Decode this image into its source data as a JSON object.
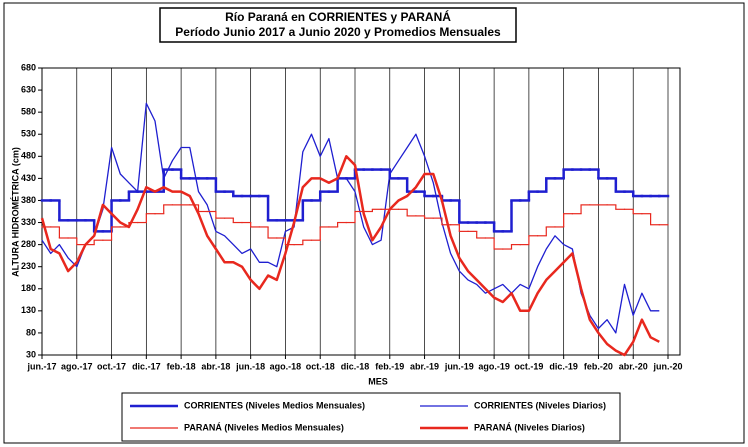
{
  "chart_data": {
    "type": "line",
    "title": "Río Paraná en CORRIENTES y PARANÁ",
    "subtitle": "Período Junio 2017 a Junio 2020 y Promedios Mensuales",
    "x_label": "MES",
    "y_label": "ALTURA HIDROMÉTRICA (cm)",
    "categories": [
      "jun.-17",
      null,
      null,
      null,
      "ago.-17",
      null,
      null,
      null,
      "oct.-17",
      null,
      null,
      null,
      "dic.-17",
      null,
      null,
      null,
      "feb.-18",
      null,
      null,
      null,
      "abr.-18",
      null,
      null,
      null,
      "jun.-18",
      null,
      null,
      null,
      "ago.-18",
      null,
      null,
      null,
      "oct.-18",
      null,
      null,
      null,
      "dic.-18",
      null,
      null,
      null,
      "feb.-19",
      null,
      null,
      null,
      "abr.-19",
      null,
      null,
      null,
      "jun.-19",
      null,
      null,
      null,
      "ago.-19",
      null,
      null,
      null,
      "oct.-19",
      null,
      null,
      null,
      "dic.-19",
      null,
      null,
      null,
      "feb.-20",
      null,
      null,
      null,
      "abr.-20",
      null,
      null,
      null,
      "jun.-20"
    ],
    "ylim": [
      30,
      680
    ],
    "yticks": [
      30,
      80,
      130,
      180,
      230,
      280,
      330,
      380,
      430,
      480,
      530,
      580,
      630,
      680
    ],
    "grid": "x",
    "series": [
      {
        "name": "CORRIENTES (Niveles Medios Mensuales)",
        "color": "#1f1fd0",
        "line_width": 2.5,
        "step": true,
        "values": [
          380,
          380,
          335,
          335,
          335,
          335,
          310,
          310,
          380,
          380,
          400,
          400,
          400,
          400,
          450,
          450,
          430,
          430,
          430,
          430,
          400,
          400,
          390,
          390,
          390,
          390,
          335,
          335,
          335,
          335,
          380,
          380,
          400,
          400,
          430,
          430,
          450,
          450,
          450,
          450,
          430,
          430,
          400,
          400,
          390,
          390,
          380,
          380,
          330,
          330,
          330,
          330,
          310,
          310,
          380,
          380,
          400,
          400,
          430,
          430,
          450,
          450,
          450,
          450,
          430,
          430,
          400,
          400,
          390,
          390,
          390,
          390,
          null
        ]
      },
      {
        "name": "CORRIENTES (Niveles Diarios)",
        "color": "#1f1fd0",
        "line_width": 1.3,
        "step": false,
        "values": [
          290,
          260,
          280,
          250,
          230,
          280,
          300,
          360,
          500,
          440,
          420,
          400,
          600,
          560,
          430,
          470,
          500,
          500,
          400,
          370,
          310,
          300,
          280,
          260,
          270,
          240,
          240,
          230,
          310,
          320,
          490,
          530,
          480,
          520,
          430,
          430,
          400,
          320,
          280,
          290,
          440,
          470,
          500,
          530,
          480,
          420,
          330,
          260,
          220,
          200,
          190,
          170,
          180,
          190,
          170,
          190,
          180,
          230,
          270,
          300,
          280,
          270,
          170,
          120,
          90,
          110,
          80,
          190,
          120,
          170,
          130,
          130,
          null
        ]
      },
      {
        "name": "PARANÁ (Niveles Medios Mensuales)",
        "color": "#e8281e",
        "line_width": 1.2,
        "step": true,
        "values": [
          320,
          320,
          295,
          295,
          280,
          280,
          290,
          290,
          320,
          320,
          330,
          330,
          350,
          350,
          370,
          370,
          370,
          370,
          355,
          355,
          340,
          340,
          330,
          330,
          320,
          320,
          295,
          295,
          280,
          280,
          290,
          290,
          320,
          320,
          330,
          330,
          355,
          355,
          360,
          360,
          360,
          360,
          345,
          345,
          340,
          340,
          325,
          325,
          310,
          310,
          295,
          295,
          270,
          270,
          280,
          280,
          300,
          300,
          320,
          320,
          350,
          350,
          370,
          370,
          370,
          370,
          360,
          360,
          350,
          350,
          325,
          325,
          null
        ]
      },
      {
        "name": "PARANÁ (Niveles Diarios)",
        "color": "#e8281e",
        "line_width": 2.5,
        "step": false,
        "values": [
          340,
          270,
          260,
          220,
          240,
          280,
          300,
          370,
          350,
          330,
          320,
          360,
          410,
          400,
          410,
          400,
          400,
          390,
          350,
          300,
          270,
          240,
          240,
          230,
          200,
          180,
          210,
          200,
          260,
          330,
          410,
          430,
          430,
          420,
          430,
          480,
          460,
          350,
          290,
          320,
          360,
          380,
          390,
          410,
          440,
          440,
          380,
          300,
          250,
          220,
          200,
          180,
          160,
          150,
          170,
          130,
          130,
          170,
          200,
          220,
          240,
          260,
          180,
          110,
          80,
          55,
          40,
          30,
          60,
          110,
          70,
          60,
          null
        ]
      }
    ]
  }
}
